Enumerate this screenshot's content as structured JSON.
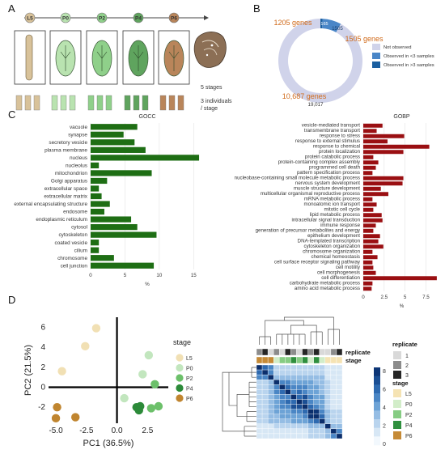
{
  "panels": {
    "a": "A",
    "b": "B",
    "c": "C",
    "d": "D"
  },
  "panel_a": {
    "stages": [
      "L5",
      "P0",
      "P2",
      "P4",
      "P6"
    ],
    "stage_colors": [
      "#d8c29a",
      "#b9e3b0",
      "#8fd08a",
      "#5fa45e",
      "#b9855a"
    ],
    "note_stages": "5 stages",
    "note_individuals_1": "3 individuals",
    "note_individuals_2": "/ stage"
  },
  "panel_b": {
    "chart_data": {
      "type": "pie",
      "values": [
        19017,
        1505,
        165
      ],
      "labels": [
        "19,017",
        "1505",
        "165"
      ],
      "legend": [
        "Not observed",
        "Observed in <3 samples",
        "Observed in >3 samples"
      ],
      "colors": [
        "#d0d3ea",
        "#4a86c7",
        "#1b5fa0"
      ],
      "annotations": [
        "1205 genes",
        "1505 genes",
        "10,687 genes"
      ]
    }
  },
  "panel_c_left": {
    "chart_data": {
      "type": "bar",
      "title": "GOCC",
      "xlabel": "%",
      "categories": [
        "vacuole",
        "synapse",
        "secretory vesicle",
        "plasma membrane",
        "nucleus",
        "nucleolus",
        "mitochondrion",
        "Golgi apparatus",
        "extracellular space",
        "extracellular matrix",
        "external encapsulating structure",
        "endosome",
        "endoplasmic reticulum",
        "cytosol",
        "cytoskeleton",
        "coated vesicle",
        "cilium",
        "chromosome",
        "cell junction"
      ],
      "values": [
        6.8,
        4.8,
        6.4,
        8.0,
        15.8,
        1.2,
        8.9,
        2.4,
        1.2,
        1.6,
        2.8,
        2.0,
        5.9,
        6.8,
        9.6,
        1.2,
        1.2,
        3.4,
        9.2
      ],
      "ticks": [
        0,
        5,
        10,
        15
      ],
      "xlim": [
        0,
        16.5
      ],
      "color": "#1e6e14"
    }
  },
  "panel_c_right": {
    "chart_data": {
      "type": "bar",
      "title": "GOBP",
      "xlabel": "%",
      "categories": [
        "vesicle-mediated transport",
        "transmembrane transport",
        "response to stress",
        "response to external stimulus",
        "response to chemical",
        "protein localization",
        "protein catabolic process",
        "protein-containing complex assembly",
        "programmed cell death",
        "pattern specification process",
        "nucleobase-containing small molecule metabolic process",
        "nervous system development",
        "muscle structure development",
        "multicellular organismal reproductive process",
        "mRNA metabolic process",
        "monoatomic ion transport",
        "mitotic cell cycle",
        "lipid metabolic process",
        "intracellular signal transduction",
        "immune response",
        "generation of precursor metabolites and energy",
        "epithelium development",
        "DNA-templated transcription",
        "cytoskeleton organization",
        "chromosome organization",
        "chemical homeostasis",
        "cell surface receptor signaling pathway",
        "cell motility",
        "cell morphogenesis",
        "cell differentiation",
        "carbohydrate metabolic process",
        "amino acid metabolic process"
      ],
      "values": [
        2.3,
        1.6,
        4.9,
        2.9,
        7.9,
        4.8,
        1.2,
        1.8,
        1.5,
        1.1,
        4.8,
        4.7,
        2.1,
        3.0,
        1.1,
        1.6,
        1.2,
        2.2,
        2.3,
        1.5,
        1.2,
        2.0,
        1.8,
        2.4,
        1.1,
        1.7,
        1.1,
        1.2,
        1.5,
        8.8,
        1.1,
        1.0
      ],
      "ticks": [
        0,
        2.5,
        5,
        7.5
      ],
      "tick_labels": [
        "0",
        "2.5",
        "5",
        "7.5"
      ],
      "xlim": [
        0,
        9.2
      ],
      "color": "#9a0f12"
    }
  },
  "panel_d_pca": {
    "chart_data": {
      "type": "scatter",
      "xlabel": "PC1 (36.5%)",
      "ylabel": "PC2 (21.5%)",
      "xlim": [
        -5.6,
        4.2
      ],
      "ylim": [
        -3.6,
        7.0
      ],
      "xticks": [
        -5,
        -2.5,
        0,
        2.5
      ],
      "xtick_labels": [
        "-5.0",
        "-2.5",
        "0.0",
        "2.5"
      ],
      "yticks": [
        -2,
        0,
        2,
        4,
        6
      ],
      "legend_title": "stage",
      "series": [
        {
          "name": "L5",
          "color": "#f1e0b4",
          "points": [
            [
              -1.7,
              5.9
            ],
            [
              -2.6,
              4.1
            ],
            [
              -4.5,
              1.6
            ]
          ]
        },
        {
          "name": "P0",
          "color": "#c2e6be",
          "points": [
            [
              2.6,
              3.2
            ],
            [
              2.1,
              1.3
            ],
            [
              0.6,
              -1.1
            ]
          ]
        },
        {
          "name": "P2",
          "color": "#6cc06a",
          "points": [
            [
              3.1,
              0.3
            ],
            [
              3.4,
              -1.9
            ],
            [
              2.8,
              -2.1
            ]
          ]
        },
        {
          "name": "P4",
          "color": "#2c8a39",
          "points": [
            [
              1.9,
              -1.9
            ],
            [
              1.6,
              -2.0
            ],
            [
              1.8,
              -2.3
            ]
          ]
        },
        {
          "name": "P6",
          "color": "#c0852f",
          "points": [
            [
              -4.9,
              -2.0
            ],
            [
              -5.0,
              -3.1
            ],
            [
              -3.4,
              -3.0
            ]
          ]
        }
      ]
    }
  },
  "panel_d_heatmap": {
    "chart_data": {
      "type": "heatmap",
      "annotation_rows": [
        "replicate",
        "stage"
      ],
      "replicate_legend_title": "replicate",
      "replicate_levels": [
        "1",
        "2",
        "3"
      ],
      "replicate_colors": [
        "#d9d9d9",
        "#8c8c8c",
        "#262626"
      ],
      "stage_legend_title": "stage",
      "stage_levels": [
        "L5",
        "P0",
        "P2",
        "P4",
        "P6"
      ],
      "stage_colors": [
        "#f5e3b3",
        "#d2edc9",
        "#86cc83",
        "#2f8f3e",
        "#c58a36"
      ],
      "scale_ticks": [
        0,
        2,
        4,
        6,
        8
      ],
      "col_replicate": [
        2,
        3,
        1,
        2,
        1,
        3,
        2,
        1,
        3,
        2,
        3,
        1,
        1,
        2,
        3
      ],
      "col_stage": [
        "P6",
        "P6",
        "P6",
        "P0",
        "P2",
        "P2",
        "P4",
        "P2",
        "P4",
        "P0",
        "P4",
        "P0",
        "L5",
        "L5",
        "L5"
      ],
      "values": [
        [
          0,
          6,
          5,
          2,
          2,
          2,
          2,
          2,
          2,
          2,
          2,
          2,
          1,
          1,
          1
        ],
        [
          6,
          0,
          5,
          2,
          2,
          2,
          2,
          2,
          2,
          2,
          2,
          2,
          1,
          1,
          1
        ],
        [
          5,
          5,
          0,
          3,
          3,
          3,
          3,
          3,
          3,
          3,
          3,
          3,
          1,
          1,
          1
        ],
        [
          2,
          2,
          3,
          0,
          5,
          5,
          4,
          4,
          4,
          4,
          3,
          3,
          2,
          1,
          1
        ],
        [
          2,
          2,
          3,
          5,
          0,
          6,
          5,
          5,
          5,
          4,
          4,
          3,
          2,
          1,
          1
        ],
        [
          2,
          2,
          3,
          5,
          6,
          0,
          5,
          6,
          5,
          4,
          4,
          3,
          2,
          1,
          1
        ],
        [
          2,
          2,
          3,
          4,
          5,
          5,
          0,
          6,
          7,
          5,
          4,
          4,
          2,
          1,
          1
        ],
        [
          2,
          2,
          3,
          4,
          5,
          6,
          6,
          0,
          7,
          5,
          4,
          4,
          2,
          1,
          1
        ],
        [
          2,
          2,
          3,
          4,
          5,
          5,
          7,
          7,
          0,
          6,
          5,
          4,
          2,
          1,
          1
        ],
        [
          2,
          2,
          3,
          4,
          4,
          4,
          5,
          5,
          6,
          0,
          8,
          5,
          3,
          2,
          2
        ],
        [
          2,
          2,
          3,
          3,
          4,
          4,
          4,
          4,
          5,
          8,
          0,
          6,
          3,
          2,
          2
        ],
        [
          2,
          2,
          3,
          3,
          3,
          3,
          4,
          4,
          4,
          5,
          6,
          0,
          3,
          2,
          2
        ],
        [
          1,
          1,
          1,
          2,
          2,
          2,
          2,
          2,
          2,
          3,
          3,
          3,
          0,
          3,
          3
        ],
        [
          1,
          1,
          1,
          1,
          1,
          1,
          1,
          1,
          1,
          2,
          2,
          2,
          3,
          0,
          5
        ],
        [
          1,
          1,
          1,
          1,
          1,
          1,
          1,
          1,
          1,
          2,
          2,
          2,
          3,
          5,
          0
        ]
      ]
    }
  }
}
